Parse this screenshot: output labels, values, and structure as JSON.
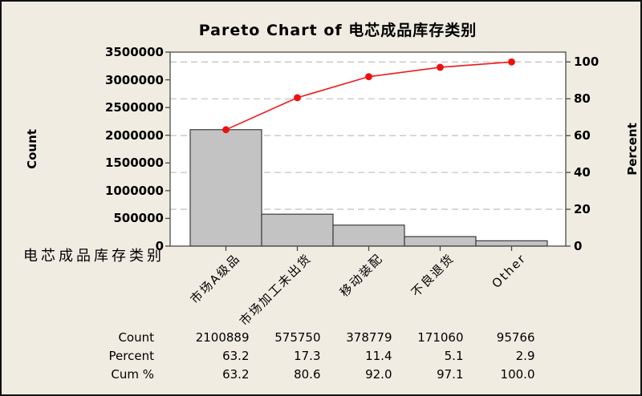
{
  "chart_data": {
    "type": "bar",
    "subtype": "pareto",
    "title": "Pareto Chart of 电芯成品库存类别",
    "categories": [
      "市场A级品",
      "市场加工未出货",
      "移动装配",
      "不良退货",
      "Other"
    ],
    "counts": [
      2100889,
      575750,
      378779,
      171060,
      95766
    ],
    "percents": [
      63.2,
      17.3,
      11.4,
      5.1,
      2.9
    ],
    "cum_percents": [
      63.2,
      80.6,
      92.0,
      97.1,
      100.0
    ],
    "xlabel": "电芯成品库存类别",
    "ylabel_left": "Count",
    "ylabel_right": "Percent",
    "ylim_left": [
      0,
      3500000
    ],
    "ylim_right": [
      0,
      100
    ],
    "left_ticks": [
      0,
      500000,
      1000000,
      1500000,
      2000000,
      2500000,
      3000000,
      3500000
    ],
    "right_ticks": [
      0,
      20,
      40,
      60,
      80,
      100
    ],
    "grid": "horizontal-dashed-at-percent-ticks",
    "legend": "none",
    "table_row_labels": [
      "Count",
      "Percent",
      "Cum %"
    ]
  },
  "colors": {
    "background": "#f0ece2",
    "plot_background": "#ffffff",
    "bar_fill": "#c3c3c3",
    "bar_border": "#3b3b3b",
    "cumulative_line": "#f01818",
    "marker": "#ee1010",
    "gridline": "#c5c5c5",
    "axis": "#4a4a4a",
    "text": "#000000",
    "frame_border": "#111111"
  }
}
